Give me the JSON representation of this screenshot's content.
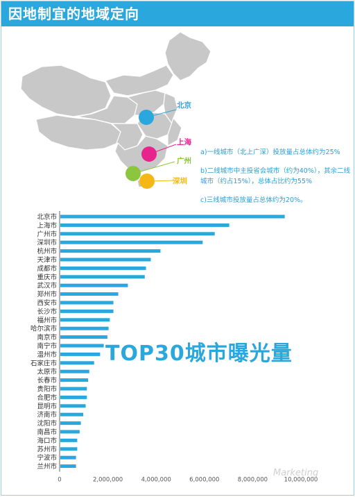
{
  "header": {
    "title": "因地制宜的地域定向"
  },
  "map": {
    "labels": [
      {
        "name": "北京",
        "color": "#2aa7dc"
      },
      {
        "name": "上海",
        "color": "#e7248e"
      },
      {
        "name": "广州",
        "color": "#8cc63f"
      },
      {
        "name": "深圳",
        "color": "#f4b715"
      }
    ],
    "notes": [
      "a)一线城市（北上广深）投放量占总体约为25%",
      "b)二线城市中主投省会城市（约为40%），其余二线城市（约占15%），总体占比约为55%",
      "c)三线城市投放量占总体约为20%。"
    ]
  },
  "overlay_title": "TOP30城市曝光量",
  "watermark": "Marketing",
  "chart_data": {
    "type": "bar",
    "orientation": "horizontal",
    "title": "TOP30城市曝光量",
    "categories": [
      "北京市",
      "上海市",
      "广州市",
      "深圳市",
      "杭州市",
      "天津市",
      "成都市",
      "重庆市",
      "武汉市",
      "郑州市",
      "西安市",
      "长沙市",
      "福州市",
      "哈尔滨市",
      "南京市",
      "南宁市",
      "温州市",
      "石家庄市",
      "太原市",
      "长春市",
      "贵阳市",
      "合肥市",
      "昆明市",
      "济南市",
      "沈阳市",
      "南昌市",
      "海口市",
      "苏州市",
      "宁波市",
      "兰州市"
    ],
    "values": [
      9300000,
      7000000,
      6400000,
      5900000,
      4150000,
      3750000,
      3550000,
      3500000,
      2800000,
      2400000,
      2200000,
      2200000,
      2050000,
      2000000,
      1950000,
      1800000,
      1650000,
      1400000,
      1200000,
      1150000,
      1100000,
      1100000,
      1050000,
      950000,
      850000,
      800000,
      700000,
      700000,
      650000,
      650000
    ],
    "xlim": [
      0,
      10000000
    ],
    "xticks": [
      "0",
      "2,000,000",
      "4,000,000",
      "6,000,000",
      "8,000,000",
      "10,000,000"
    ],
    "color": "#2aa7dc",
    "grid": false
  }
}
